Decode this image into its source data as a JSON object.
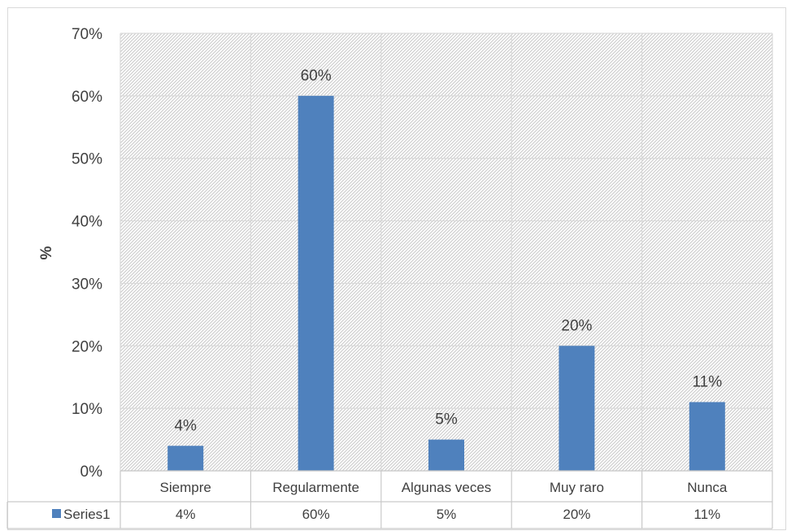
{
  "chart_data": {
    "type": "bar",
    "categories": [
      "Siempre",
      "Regularmente",
      "Algunas veces",
      "Muy raro",
      "Nunca"
    ],
    "series": [
      {
        "name": "Series1",
        "values": [
          4,
          60,
          5,
          20,
          11
        ],
        "labels": [
          "4%",
          "60%",
          "5%",
          "20%",
          "11%"
        ],
        "color": "#4f81bd"
      }
    ],
    "title": "",
    "xlabel": "",
    "ylabel": "%",
    "ylim": [
      0,
      70
    ],
    "yticks": [
      "0%",
      "10%",
      "20%",
      "30%",
      "40%",
      "50%",
      "60%",
      "70%"
    ],
    "grid": true,
    "background": "hatched",
    "data_table": {
      "legend_key": "Series1",
      "values": [
        "4%",
        "60%",
        "5%",
        "20%",
        "11%"
      ]
    }
  }
}
